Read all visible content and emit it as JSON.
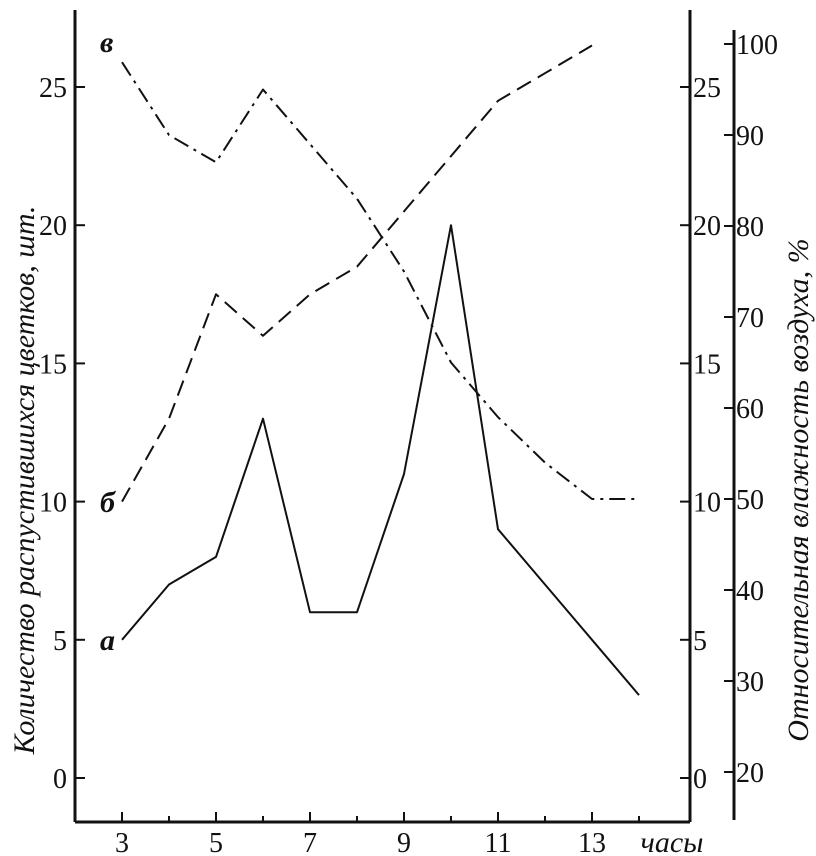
{
  "chart_data": {
    "type": "line",
    "x": [
      3,
      4,
      5,
      6,
      7,
      8,
      9,
      10,
      11,
      12,
      13,
      14
    ],
    "x_ticks": [
      "3",
      "5",
      "7",
      "9",
      "11",
      "13"
    ],
    "x_tick_values": [
      3,
      5,
      7,
      9,
      11,
      13
    ],
    "xlim": [
      2,
      14.5
    ],
    "xlabel": "часы",
    "ylabel_left": "Количество распустившихся цветков, шт.",
    "ylim_left": [
      -1,
      28
    ],
    "y_ticks_left": [
      "0",
      "5",
      "10",
      "15",
      "20",
      "25"
    ],
    "y_tick_values_left": [
      0,
      5,
      10,
      15,
      20,
      25
    ],
    "y_ticks_inner_right": [
      "0",
      "5",
      "10",
      "15",
      "20",
      "25"
    ],
    "ylabel_right": "Относительная влажность воздуха, %",
    "ylim_right": [
      15,
      102
    ],
    "y_ticks_right": [
      "20",
      "30",
      "40",
      "50",
      "60",
      "70",
      "80",
      "90",
      "100"
    ],
    "y_tick_values_right": [
      20,
      30,
      40,
      50,
      60,
      70,
      80,
      90,
      100
    ],
    "series": [
      {
        "label": "а",
        "axis": "left",
        "style": "solid",
        "x": [
          3,
          4,
          5,
          6,
          7,
          8,
          9,
          10,
          11,
          12,
          13,
          14
        ],
        "values": [
          5,
          7,
          8,
          13,
          6,
          6,
          11,
          20,
          9,
          7,
          5,
          3
        ]
      },
      {
        "label": "б",
        "axis": "left",
        "style": "dashed",
        "x": [
          3,
          4,
          5,
          6,
          7,
          8,
          9,
          10,
          11,
          12,
          13
        ],
        "values": [
          10,
          13,
          17.5,
          16,
          17.5,
          18.5,
          20.5,
          22.5,
          24.5,
          25.5,
          26.5
        ]
      },
      {
        "label": "в",
        "axis": "right",
        "style": "dashdot",
        "x": [
          3,
          4,
          5,
          6,
          7,
          8,
          9,
          10,
          11,
          12,
          13,
          14
        ],
        "values": [
          98,
          90,
          87,
          95,
          89,
          83,
          75,
          65,
          59,
          54,
          50,
          50
        ]
      }
    ],
    "grid": false,
    "legend": "none"
  }
}
